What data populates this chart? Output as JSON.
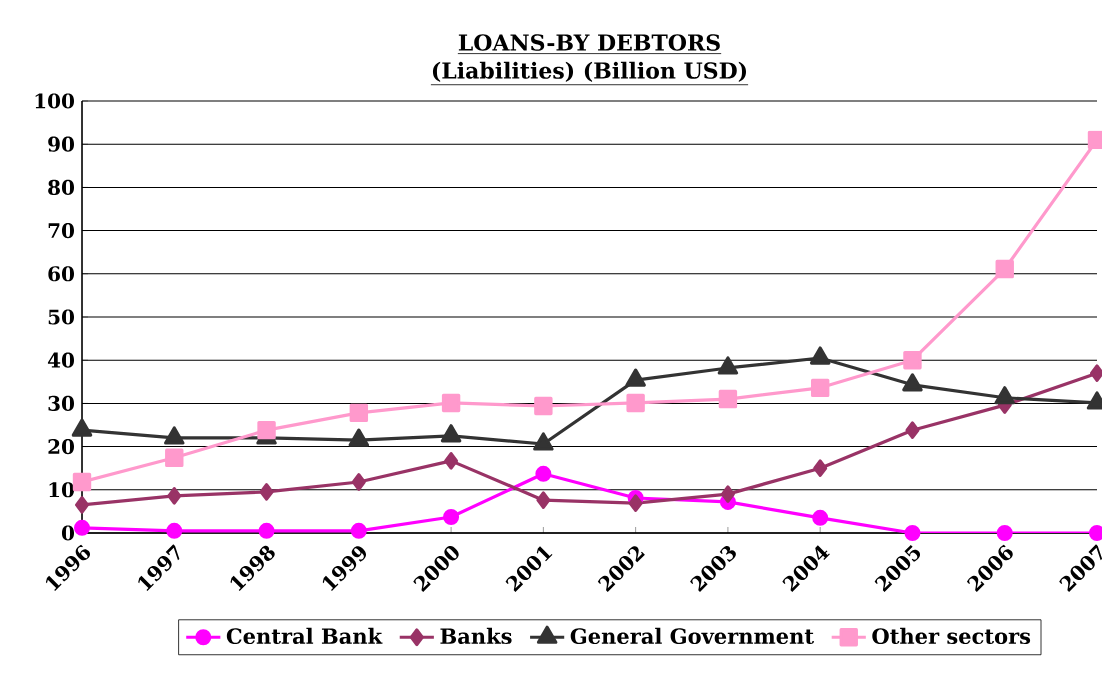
{
  "chart_data": {
    "type": "line",
    "title": "LOANS-BY DEBTORS",
    "subtitle": "(Liabilities) (Billion USD)",
    "categories": [
      "1996",
      "1997",
      "1998",
      "1999",
      "2000",
      "2001",
      "2002",
      "2003",
      "2004",
      "2005",
      "2006",
      "2007"
    ],
    "series": [
      {
        "name": "Central Bank",
        "color": "#ff00ff",
        "marker": "circle",
        "values": [
          1.2,
          0.5,
          0.5,
          0.5,
          3.7,
          13.7,
          8.1,
          7.2,
          3.5,
          0,
          0,
          0
        ]
      },
      {
        "name": "Banks",
        "color": "#993366",
        "marker": "diamond",
        "values": [
          6.5,
          8.6,
          9.5,
          11.8,
          16.7,
          7.6,
          6.9,
          9,
          15,
          23.8,
          29.6,
          37
        ]
      },
      {
        "name": "General Government",
        "color": "#333333",
        "marker": "triangle",
        "values": [
          23.8,
          22,
          22,
          21.5,
          22.5,
          20.6,
          35.4,
          38.2,
          40.5,
          34.3,
          31.3,
          30.1
        ]
      },
      {
        "name": "Other sectors",
        "color": "#ff99cc",
        "marker": "square",
        "values": [
          11.8,
          17.4,
          23.8,
          27.8,
          30.1,
          29.4,
          30.1,
          31,
          33.6,
          40,
          61.1,
          91
        ]
      }
    ],
    "ylim": [
      0,
      100
    ],
    "yticks": [
      0,
      10,
      20,
      30,
      40,
      50,
      60,
      70,
      80,
      90,
      100
    ],
    "grid": "y",
    "legend": "bottom",
    "line_style": "solid"
  }
}
